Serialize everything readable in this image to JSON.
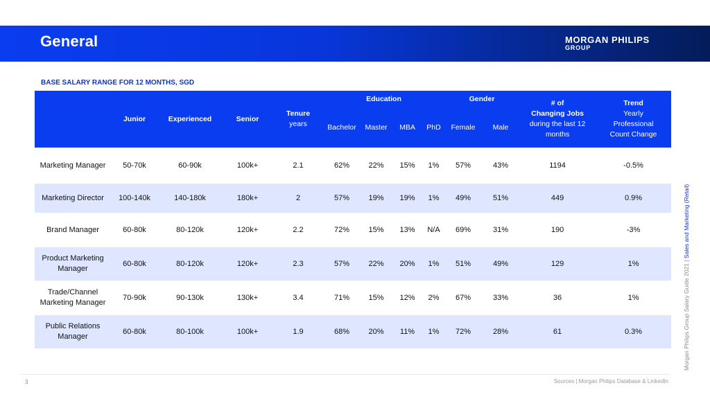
{
  "header": {
    "title": "General",
    "logo_line1": "MORGAN PHILIPS",
    "logo_line2": "GROUP"
  },
  "subtitle": "BASE SALARY RANGE FOR 12 MONTHS, SGD",
  "table": {
    "headers": {
      "junior": "Junior",
      "experienced": "Experienced",
      "senior": "Senior",
      "tenure_line1": "Tenure",
      "tenure_line2": "years",
      "education": "Education",
      "bachelor": "Bachelor",
      "master": "Master",
      "mba": "MBA",
      "phd": "PhD",
      "gender": "Gender",
      "female": "Female",
      "male": "Male",
      "jobs_line1": "# of",
      "jobs_line2": "Changing Jobs",
      "jobs_line3": "during the last 12",
      "jobs_line4": "months",
      "trend_line1": "Trend",
      "trend_line2": "Yearly",
      "trend_line3": "Professional",
      "trend_line4": "Count Change"
    },
    "rows": [
      {
        "title_1": "Marketing Manager",
        "title_2": "",
        "junior": "50-70k",
        "experienced": "60-90k",
        "senior": "100k+",
        "tenure": "2.1",
        "bachelor": "62%",
        "master": "22%",
        "mba": "15%",
        "phd": "1%",
        "female": "57%",
        "male": "43%",
        "jobs": "1194",
        "trend": "-0.5%"
      },
      {
        "title_1": "Marketing Director",
        "title_2": "",
        "junior": "100-140k",
        "experienced": "140-180k",
        "senior": "180k+",
        "tenure": "2",
        "bachelor": "57%",
        "master": "19%",
        "mba": "19%",
        "phd": "1%",
        "female": "49%",
        "male": "51%",
        "jobs": "449",
        "trend": "0.9%"
      },
      {
        "title_1": "Brand Manager",
        "title_2": "",
        "junior": "60-80k",
        "experienced": "80-120k",
        "senior": "120k+",
        "tenure": "2.2",
        "bachelor": "72%",
        "master": "15%",
        "mba": "13%",
        "phd": "N/A",
        "female": "69%",
        "male": "31%",
        "jobs": "190",
        "trend": "-3%"
      },
      {
        "title_1": "Product Marketing",
        "title_2": "Manager",
        "junior": "60-80k",
        "experienced": "80-120k",
        "senior": "120k+",
        "tenure": "2.3",
        "bachelor": "57%",
        "master": "22%",
        "mba": "20%",
        "phd": "1%",
        "female": "51%",
        "male": "49%",
        "jobs": "129",
        "trend": "1%"
      },
      {
        "title_1": "Trade/Channel",
        "title_2": "Marketing Manager",
        "junior": "70-90k",
        "experienced": "90-130k",
        "senior": "130k+",
        "tenure": "3.4",
        "bachelor": "71%",
        "master": "15%",
        "mba": "12%",
        "phd": "2%",
        "female": "67%",
        "male": "33%",
        "jobs": "36",
        "trend": "1%"
      },
      {
        "title_1": "Public Relations",
        "title_2": "Manager",
        "junior": "60-80k",
        "experienced": "80-100k",
        "senior": "100k+",
        "tenure": "1.9",
        "bachelor": "68%",
        "master": "20%",
        "mba": "11%",
        "phd": "1%",
        "female": "72%",
        "male": "28%",
        "jobs": "61",
        "trend": "0.3%"
      }
    ]
  },
  "side_text": {
    "main": "Morgan Philips Group Salary Guide 2021 | ",
    "highlight": "Sales and Marketing (Retail)"
  },
  "footer": {
    "page_number": "3",
    "sources": "Sources | Morgan Philips Database & LinkedIn"
  },
  "colors": {
    "brand_blue": "#0a3df0",
    "row_alt": "#dfe6ff",
    "accent_text": "#1034c8"
  }
}
